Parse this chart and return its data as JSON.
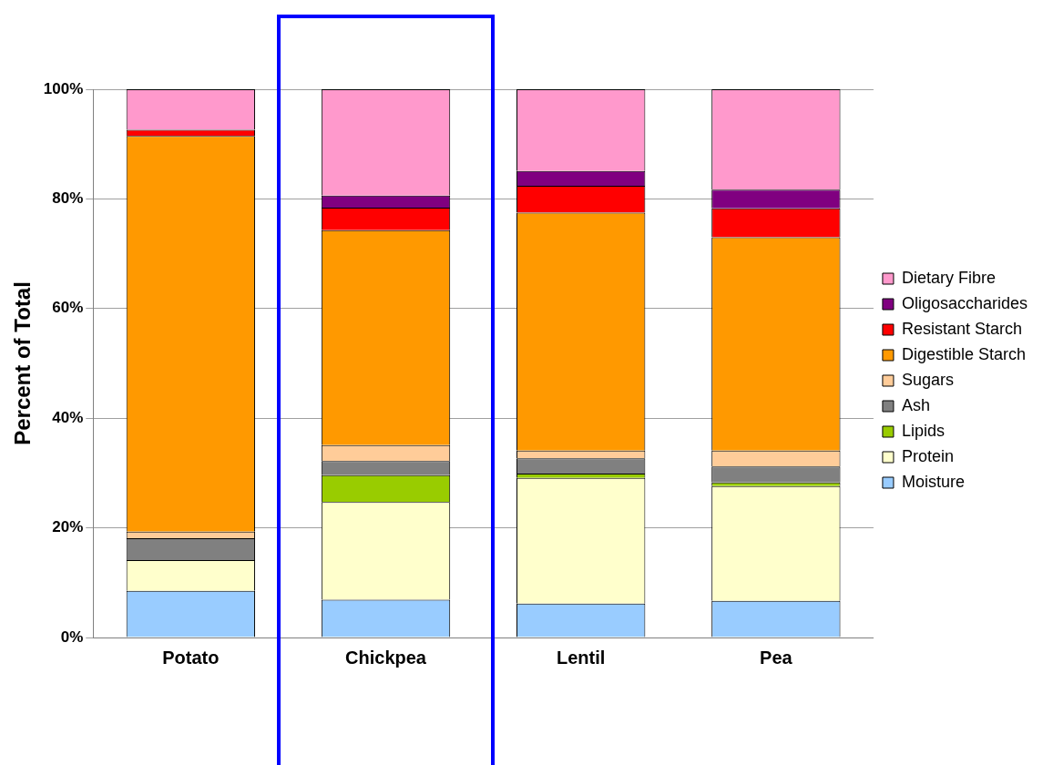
{
  "chart_data": {
    "type": "bar",
    "stacked": true,
    "ylabel": "Percent of Total",
    "categories": [
      "Potato",
      "Chickpea",
      "Lentil",
      "Pea"
    ],
    "series": [
      {
        "name": "Moisture",
        "color": "#99ccff",
        "values": [
          8.5,
          6.9,
          6.2,
          6.7
        ]
      },
      {
        "name": "Protein",
        "color": "#ffffcc",
        "values": [
          5.6,
          17.8,
          22.9,
          20.9
        ]
      },
      {
        "name": "Lipids",
        "color": "#99cc00",
        "values": [
          0,
          4.9,
          0.8,
          0.7
        ]
      },
      {
        "name": "Ash",
        "color": "#808080",
        "values": [
          4.0,
          2.6,
          2.8,
          2.9
        ]
      },
      {
        "name": "Sugars",
        "color": "#ffcc99",
        "values": [
          1.2,
          2.9,
          1.4,
          2.9
        ]
      },
      {
        "name": "Digestible Starch",
        "color": "#ff9900",
        "values": [
          72.2,
          39.2,
          43.4,
          38.9
        ]
      },
      {
        "name": "Resistant Starch",
        "color": "#ff0000",
        "values": [
          1.1,
          4.1,
          4.9,
          5.3
        ]
      },
      {
        "name": "Oligosaccharides",
        "color": "#800080",
        "values": [
          0,
          2.2,
          2.7,
          3.4
        ]
      },
      {
        "name": "Dietary Fibre",
        "color": "#ff99cc",
        "values": [
          7.4,
          19.4,
          14.9,
          18.3
        ]
      }
    ],
    "ylim": [
      0,
      100
    ],
    "yticks": [
      {
        "value": 0,
        "label": "0%"
      },
      {
        "value": 20,
        "label": "20%"
      },
      {
        "value": 40,
        "label": "40%"
      },
      {
        "value": 60,
        "label": "60%"
      },
      {
        "value": 80,
        "label": "80%"
      },
      {
        "value": 100,
        "label": "100%"
      }
    ],
    "grid": "y",
    "legend": "right"
  }
}
